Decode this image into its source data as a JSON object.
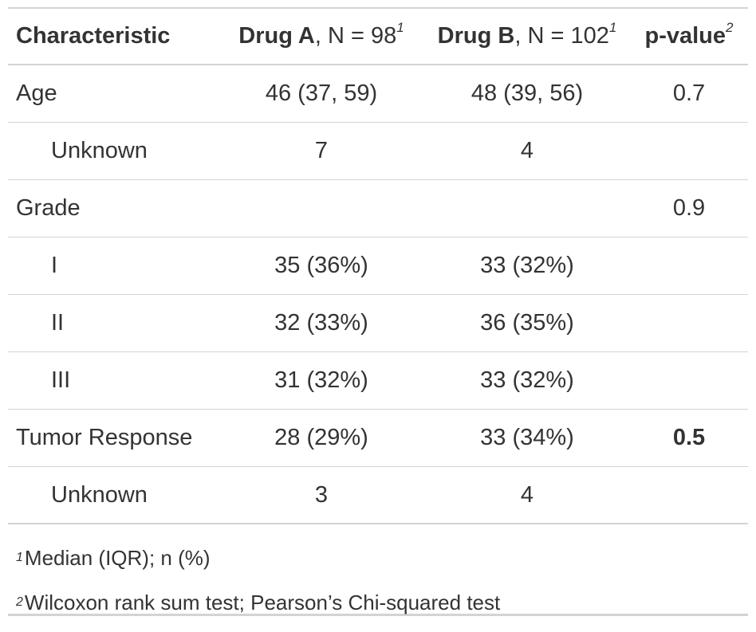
{
  "columns": {
    "characteristic": "Characteristic",
    "drug_a": {
      "name": "Drug A",
      "n": ", N = 98",
      "fn": "1"
    },
    "drug_b": {
      "name": "Drug B",
      "n": ", N = 102",
      "fn": "1"
    },
    "pvalue": {
      "name": "p-value",
      "fn": "2"
    }
  },
  "rows": [
    {
      "label": "Age",
      "a": "46 (37, 59)",
      "b": "48 (39, 56)",
      "p": "0.7"
    },
    {
      "label": "Unknown",
      "a": "7",
      "b": "4",
      "p": ""
    },
    {
      "label": "Grade",
      "a": "",
      "b": "",
      "p": "0.9"
    },
    {
      "label": "I",
      "a": "35 (36%)",
      "b": "33 (32%)",
      "p": ""
    },
    {
      "label": "II",
      "a": "32 (33%)",
      "b": "36 (35%)",
      "p": ""
    },
    {
      "label": "III",
      "a": "31 (32%)",
      "b": "33 (32%)",
      "p": ""
    },
    {
      "label": "Tumor Response",
      "a": "28 (29%)",
      "b": "33 (34%)",
      "p": "0.5"
    },
    {
      "label": "Unknown",
      "a": "3",
      "b": "4",
      "p": ""
    }
  ],
  "footnotes": [
    {
      "mark": "1",
      "text": "Median (IQR); n (%)"
    },
    {
      "mark": "2",
      "text": "Wilcoxon rank sum test; Pearson’s Chi-squared test"
    }
  ]
}
